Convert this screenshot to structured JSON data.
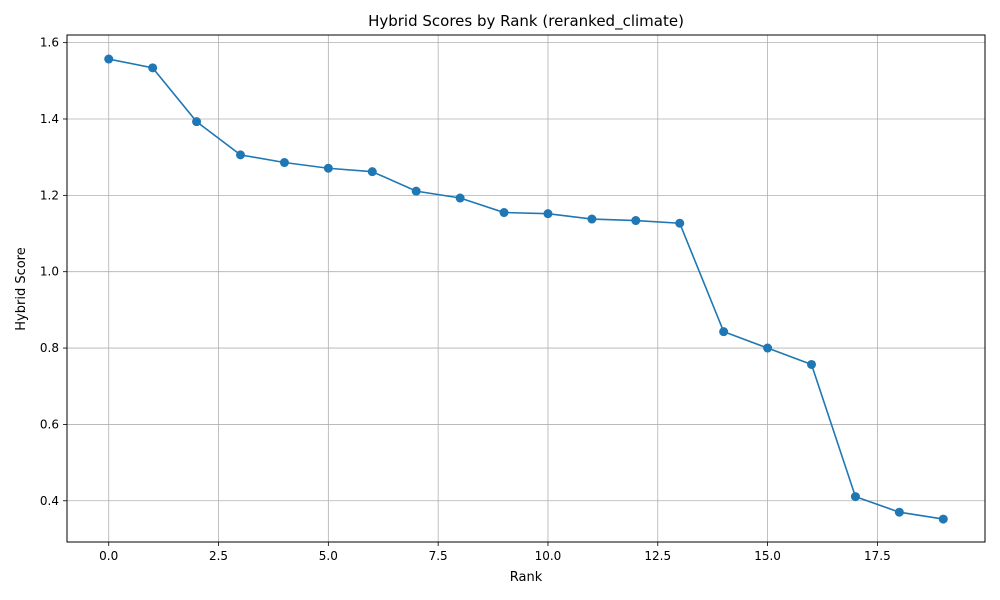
{
  "chart_data": {
    "type": "line",
    "title": "Hybrid Scores by Rank (reranked_climate)",
    "xlabel": "Rank",
    "ylabel": "Hybrid Score",
    "xlim": [
      -0.95,
      19.95
    ],
    "ylim": [
      0.292,
      1.62
    ],
    "xticks": [
      0.0,
      2.5,
      5.0,
      7.5,
      10.0,
      12.5,
      15.0,
      17.5
    ],
    "xtick_labels": [
      "0.0",
      "2.5",
      "5.0",
      "7.5",
      "10.0",
      "12.5",
      "15.0",
      "17.5"
    ],
    "yticks": [
      0.4,
      0.6,
      0.8,
      1.0,
      1.2,
      1.4,
      1.6
    ],
    "ytick_labels": [
      "0.4",
      "0.6",
      "0.8",
      "1.0",
      "1.2",
      "1.4",
      "1.6"
    ],
    "grid": true,
    "color": "#1f77b4",
    "marker": "circle",
    "series": [
      {
        "x": [
          0,
          1,
          2,
          3,
          4,
          5,
          6,
          7,
          8,
          9,
          10,
          11,
          12,
          13,
          14,
          15,
          16,
          17,
          18,
          19
        ],
        "values": [
          1.557,
          1.534,
          1.393,
          1.306,
          1.286,
          1.271,
          1.262,
          1.211,
          1.193,
          1.155,
          1.152,
          1.138,
          1.134,
          1.127,
          0.843,
          0.8,
          0.757,
          0.411,
          0.37,
          0.352
        ]
      }
    ]
  }
}
